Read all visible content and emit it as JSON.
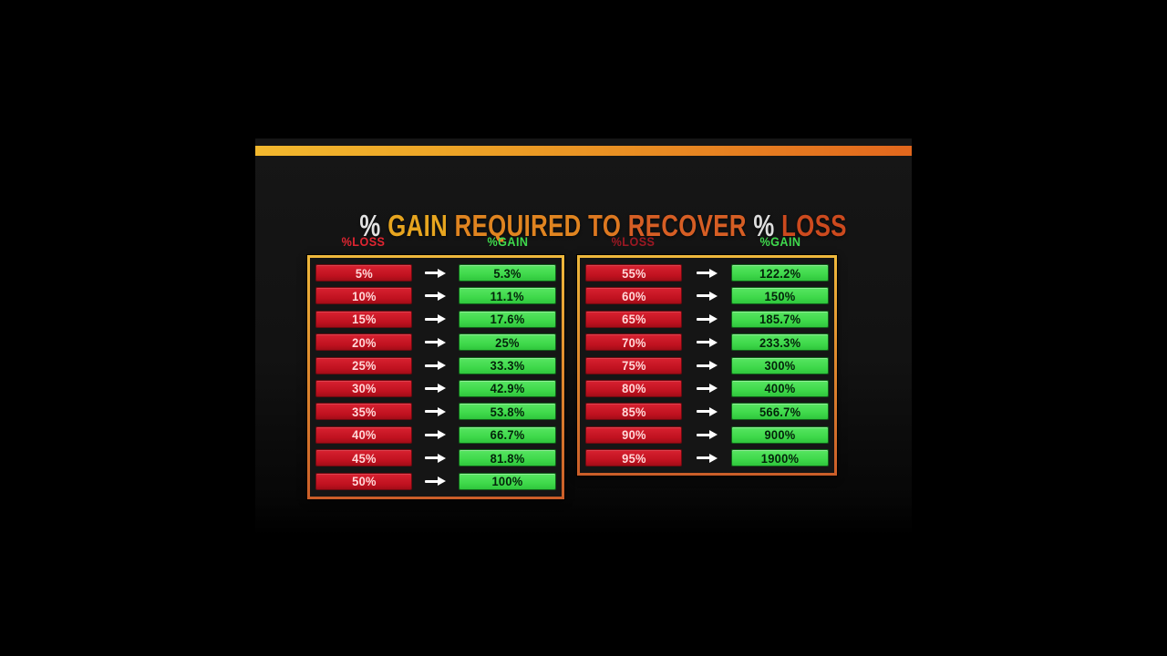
{
  "title": {
    "full": "% GAIN REQUIRED TO RECOVER % LOSS",
    "parts": [
      {
        "text": "% ",
        "color": "#e3e3e3"
      },
      {
        "text": "GAIN ",
        "color": "#e7a51f"
      },
      {
        "text": "REQUIRED ",
        "color": "#e08420"
      },
      {
        "text": "TO ",
        "color": "#dd7820"
      },
      {
        "text": "RECOVER ",
        "color": "#d65e24"
      },
      {
        "text": "% ",
        "color": "#dedede"
      },
      {
        "text": "LOSS",
        "color": "#cc4a1e"
      }
    ]
  },
  "tables": [
    {
      "loss_header": "%LOSS",
      "gain_header": "%GAIN",
      "rows": [
        {
          "loss": "5%",
          "gain": "5.3%"
        },
        {
          "loss": "10%",
          "gain": "11.1%"
        },
        {
          "loss": "15%",
          "gain": "17.6%"
        },
        {
          "loss": "20%",
          "gain": "25%"
        },
        {
          "loss": "25%",
          "gain": "33.3%"
        },
        {
          "loss": "30%",
          "gain": "42.9%"
        },
        {
          "loss": "35%",
          "gain": "53.8%"
        },
        {
          "loss": "40%",
          "gain": "66.7%"
        },
        {
          "loss": "45%",
          "gain": "81.8%"
        },
        {
          "loss": "50%",
          "gain": "100%"
        }
      ]
    },
    {
      "loss_header": "%LOSS",
      "gain_header": "%GAIN",
      "rows": [
        {
          "loss": "55%",
          "gain": "122.2%"
        },
        {
          "loss": "60%",
          "gain": "150%"
        },
        {
          "loss": "65%",
          "gain": "185.7%"
        },
        {
          "loss": "70%",
          "gain": "233.3%"
        },
        {
          "loss": "75%",
          "gain": "300%"
        },
        {
          "loss": "80%",
          "gain": "400%"
        },
        {
          "loss": "85%",
          "gain": "566.7%"
        },
        {
          "loss": "90%",
          "gain": "900%"
        },
        {
          "loss": "95%",
          "gain": "1900%"
        }
      ]
    }
  ],
  "colors": {
    "background": "#000000",
    "panel_background": "#131313",
    "top_bar_gradient": [
      "#f2b82e",
      "#e2671d"
    ],
    "loss_cell_red": "#c9161f",
    "gain_cell_green": "#44dc52",
    "loss_cell_text": "#ffd8d8",
    "gain_cell_text": "#03230a",
    "table_border_top": "#efb93c",
    "table_border_bottom": "#cb5e29",
    "loss_header_red": "#e02531",
    "loss_header_red_dim": "#9c1823",
    "gain_header_green": "#3fd94d",
    "arrow_white": "#ffffff"
  },
  "chart_data": {
    "type": "table",
    "title": "% GAIN REQUIRED TO RECOVER % LOSS",
    "columns": [
      "%LOSS",
      "%GAIN"
    ],
    "rows": [
      [
        5,
        5.3
      ],
      [
        10,
        11.1
      ],
      [
        15,
        17.6
      ],
      [
        20,
        25
      ],
      [
        25,
        33.3
      ],
      [
        30,
        42.9
      ],
      [
        35,
        53.8
      ],
      [
        40,
        66.7
      ],
      [
        45,
        81.8
      ],
      [
        50,
        100
      ],
      [
        55,
        122.2
      ],
      [
        60,
        150
      ],
      [
        65,
        185.7
      ],
      [
        70,
        233.3
      ],
      [
        75,
        300
      ],
      [
        80,
        400
      ],
      [
        85,
        566.7
      ],
      [
        90,
        900
      ],
      [
        95,
        1900
      ]
    ],
    "note_layout": "two side-by-side tables; left table rows 5%-50%, right table rows 55%-95%; red loss cell, white arrow, green gain cell per row"
  }
}
